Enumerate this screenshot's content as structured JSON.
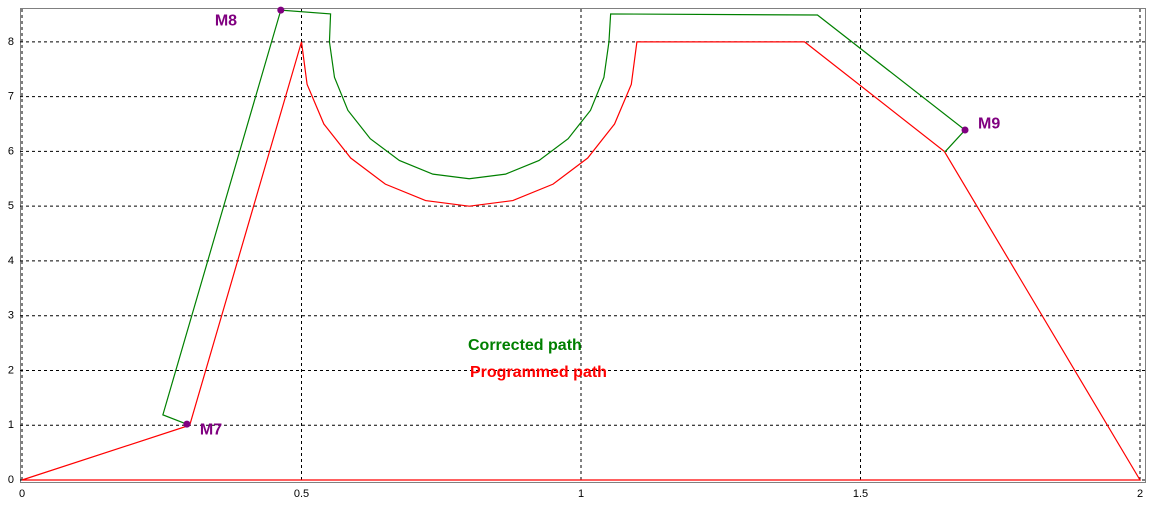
{
  "chart_data": {
    "type": "line",
    "series": [
      {
        "name": "Corrected path",
        "color": "#008000",
        "x": [
          0.295,
          0.252,
          0.463,
          0.552,
          0.55,
          0.559,
          0.583,
          0.623,
          0.675,
          0.735,
          0.8,
          0.865,
          0.925,
          0.977,
          1.017,
          1.041,
          1.05,
          1.053,
          1.423,
          1.687,
          1.651
        ],
        "values": [
          1.02,
          1.19,
          8.58,
          8.51,
          8,
          7.353,
          6.75,
          6.232,
          5.835,
          5.585,
          5.5,
          5.585,
          5.835,
          6.232,
          6.75,
          7.353,
          8,
          8.51,
          8.49,
          6.39,
          5.99
        ]
      },
      {
        "name": "Programmed path",
        "color": "#ff0000",
        "x": [
          0,
          0.3,
          0.5,
          0.51,
          0.54,
          0.588,
          0.65,
          0.722,
          0.8,
          0.878,
          0.95,
          1.012,
          1.06,
          1.09,
          1.1,
          1.4,
          1.65,
          2,
          0
        ],
        "values": [
          0,
          1,
          8,
          7.224,
          6.5,
          5.879,
          5.402,
          5.102,
          5,
          5.102,
          5.402,
          5.879,
          6.5,
          7.224,
          8,
          8,
          6,
          0,
          0
        ]
      }
    ],
    "annotations": [
      {
        "text": "M7",
        "x": 0.295,
        "y": 1.02
      },
      {
        "text": "M8",
        "x": 0.463,
        "y": 8.58
      },
      {
        "text": "M9",
        "x": 1.687,
        "y": 6.39
      }
    ],
    "marker_color": "#800080",
    "xlim": [
      0,
      2
    ],
    "ylim": [
      0,
      8.6
    ],
    "xticks": [
      0,
      0.5,
      1,
      1.5,
      2
    ],
    "yticks": [
      0,
      1,
      2,
      3,
      4,
      5,
      6,
      7,
      8
    ],
    "grid": true
  }
}
